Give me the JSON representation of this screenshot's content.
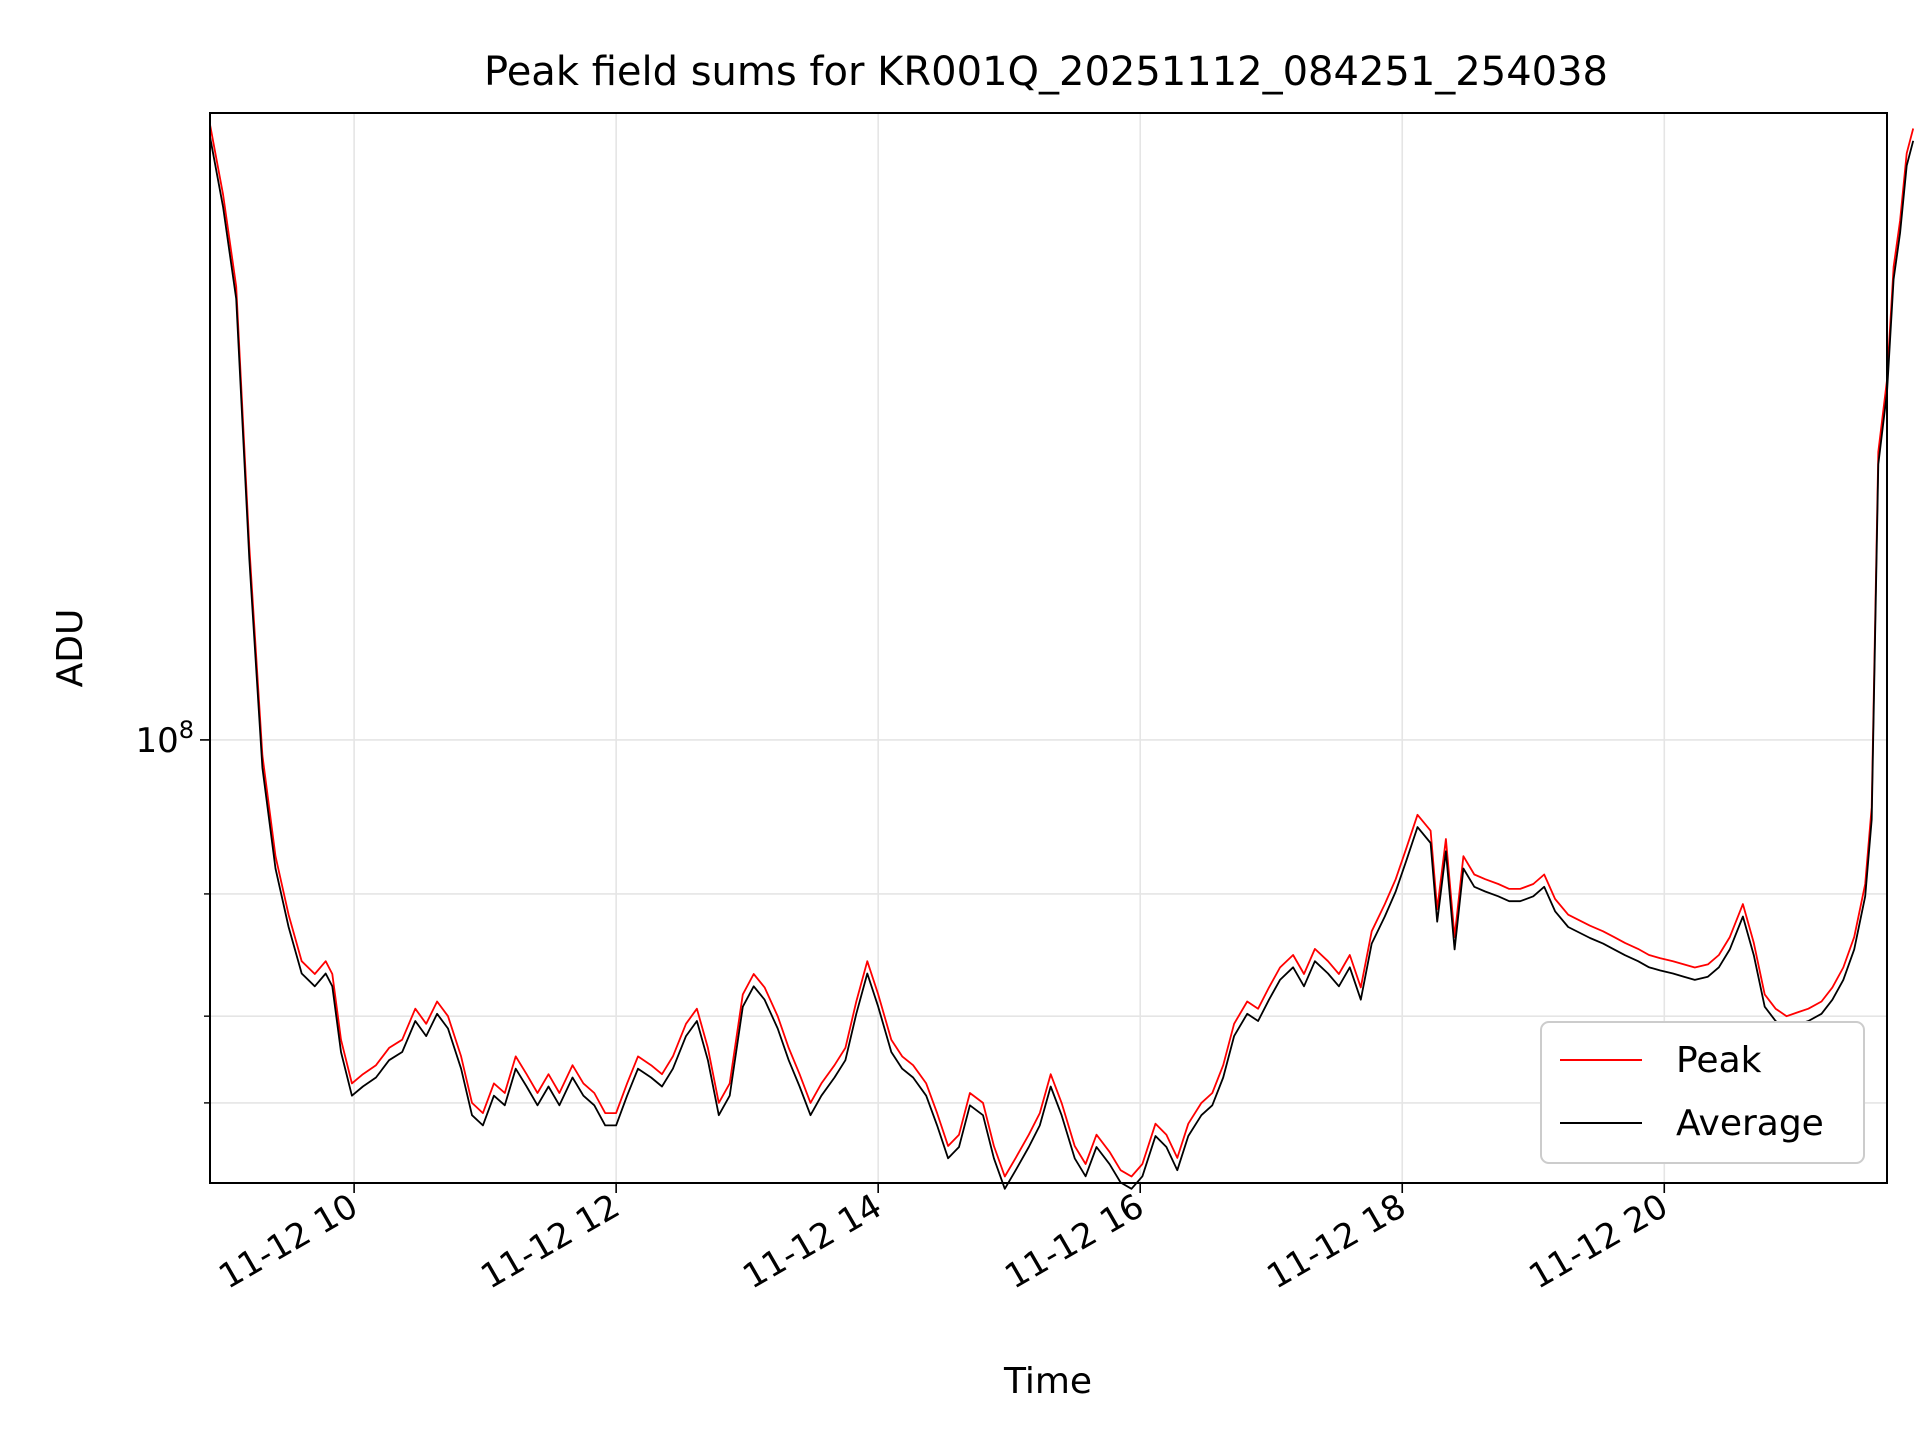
{
  "chart_data": {
    "type": "line",
    "title": "Peak field sums for KR001Q_20251112_084251_254038",
    "xlabel": "Time",
    "ylabel": "ADU",
    "x_ticks": [
      "11-12 10",
      "11-12 12",
      "11-12 14",
      "11-12 16",
      "11-12 18",
      "11-12 20"
    ],
    "y_ticks": [
      "10^8"
    ],
    "y_scale": "log",
    "grid": true,
    "legend_position": "lower right",
    "xlim": [
      "2025-11-12 08:54",
      "2025-11-12 21:42"
    ],
    "ylim": [
      23000000,
      800000000
    ],
    "series": [
      {
        "name": "Peak",
        "color": "#ff0000",
        "points": [
          [
            "08:54",
            770000000
          ],
          [
            "09:00",
            610000000
          ],
          [
            "09:06",
            450000000
          ],
          [
            "09:12",
            190000000
          ],
          [
            "09:18",
            95000000
          ],
          [
            "09:24",
            68000000
          ],
          [
            "09:30",
            56000000
          ],
          [
            "09:36",
            48000000
          ],
          [
            "09:42",
            46000000
          ],
          [
            "09:47",
            48000000
          ],
          [
            "09:50",
            46000000
          ],
          [
            "09:54",
            37000000
          ],
          [
            "09:59",
            32000000
          ],
          [
            "10:04",
            33000000
          ],
          [
            "10:10",
            34000000
          ],
          [
            "10:16",
            36000000
          ],
          [
            "10:22",
            37000000
          ],
          [
            "10:28",
            41000000
          ],
          [
            "10:33",
            39000000
          ],
          [
            "10:38",
            42000000
          ],
          [
            "10:43",
            40000000
          ],
          [
            "10:49",
            35000000
          ],
          [
            "10:54",
            30000000
          ],
          [
            "10:59",
            29000000
          ],
          [
            "11:04",
            32000000
          ],
          [
            "11:09",
            31000000
          ],
          [
            "11:14",
            35000000
          ],
          [
            "11:19",
            33000000
          ],
          [
            "11:24",
            31000000
          ],
          [
            "11:29",
            33000000
          ],
          [
            "11:34",
            31000000
          ],
          [
            "11:40",
            34000000
          ],
          [
            "11:45",
            32000000
          ],
          [
            "11:50",
            31000000
          ],
          [
            "11:55",
            29000000
          ],
          [
            "12:00",
            29000000
          ],
          [
            "12:05",
            32000000
          ],
          [
            "12:10",
            35000000
          ],
          [
            "12:16",
            34000000
          ],
          [
            "12:21",
            33000000
          ],
          [
            "12:26",
            35000000
          ],
          [
            "12:32",
            39000000
          ],
          [
            "12:37",
            41000000
          ],
          [
            "12:42",
            36000000
          ],
          [
            "12:47",
            30000000
          ],
          [
            "12:52",
            32000000
          ],
          [
            "12:58",
            43000000
          ],
          [
            "13:03",
            46000000
          ],
          [
            "13:08",
            44000000
          ],
          [
            "13:14",
            40000000
          ],
          [
            "13:19",
            36000000
          ],
          [
            "13:24",
            33000000
          ],
          [
            "13:29",
            30000000
          ],
          [
            "13:34",
            32000000
          ],
          [
            "13:40",
            34000000
          ],
          [
            "13:45",
            36000000
          ],
          [
            "13:50",
            42000000
          ],
          [
            "13:55",
            48000000
          ],
          [
            "14:00",
            43000000
          ],
          [
            "14:06",
            37000000
          ],
          [
            "14:11",
            35000000
          ],
          [
            "14:16",
            34000000
          ],
          [
            "14:22",
            32000000
          ],
          [
            "14:27",
            29000000
          ],
          [
            "14:32",
            26000000
          ],
          [
            "14:37",
            27000000
          ],
          [
            "14:42",
            31000000
          ],
          [
            "14:48",
            30000000
          ],
          [
            "14:53",
            26000000
          ],
          [
            "14:58",
            23500000
          ],
          [
            "15:03",
            25000000
          ],
          [
            "15:09",
            27000000
          ],
          [
            "15:14",
            29000000
          ],
          [
            "15:19",
            33000000
          ],
          [
            "15:24",
            30000000
          ],
          [
            "15:30",
            26000000
          ],
          [
            "15:35",
            24500000
          ],
          [
            "15:40",
            27000000
          ],
          [
            "15:46",
            25500000
          ],
          [
            "15:51",
            24000000
          ],
          [
            "15:56",
            23500000
          ],
          [
            "16:01",
            24500000
          ],
          [
            "16:07",
            28000000
          ],
          [
            "16:12",
            27000000
          ],
          [
            "16:17",
            25000000
          ],
          [
            "16:22",
            28000000
          ],
          [
            "16:28",
            30000000
          ],
          [
            "16:33",
            31000000
          ],
          [
            "16:38",
            34000000
          ],
          [
            "16:43",
            39000000
          ],
          [
            "16:49",
            42000000
          ],
          [
            "16:54",
            41000000
          ],
          [
            "16:59",
            44000000
          ],
          [
            "17:04",
            47000000
          ],
          [
            "17:10",
            49000000
          ],
          [
            "17:15",
            46000000
          ],
          [
            "17:20",
            50000000
          ],
          [
            "17:26",
            48000000
          ],
          [
            "17:31",
            46000000
          ],
          [
            "17:36",
            49000000
          ],
          [
            "17:41",
            44000000
          ],
          [
            "17:46",
            53000000
          ],
          [
            "17:52",
            58000000
          ],
          [
            "17:57",
            63000000
          ],
          [
            "18:02",
            70000000
          ],
          [
            "18:07",
            78000000
          ],
          [
            "18:13",
            74000000
          ],
          [
            "18:16",
            57000000
          ],
          [
            "18:20",
            72000000
          ],
          [
            "18:24",
            52000000
          ],
          [
            "18:28",
            68000000
          ],
          [
            "18:33",
            64000000
          ],
          [
            "18:38",
            63000000
          ],
          [
            "18:44",
            62000000
          ],
          [
            "18:49",
            61000000
          ],
          [
            "18:54",
            61000000
          ],
          [
            "19:00",
            62000000
          ],
          [
            "19:05",
            64000000
          ],
          [
            "19:10",
            59000000
          ],
          [
            "19:16",
            56000000
          ],
          [
            "19:21",
            55000000
          ],
          [
            "19:26",
            54000000
          ],
          [
            "19:32",
            53000000
          ],
          [
            "19:37",
            52000000
          ],
          [
            "19:42",
            51000000
          ],
          [
            "19:48",
            50000000
          ],
          [
            "19:53",
            49000000
          ],
          [
            "19:58",
            48500000
          ],
          [
            "20:04",
            48000000
          ],
          [
            "20:09",
            47500000
          ],
          [
            "20:14",
            47000000
          ],
          [
            "20:20",
            47500000
          ],
          [
            "20:25",
            49000000
          ],
          [
            "20:30",
            52000000
          ],
          [
            "20:36",
            58000000
          ],
          [
            "20:41",
            51000000
          ],
          [
            "20:46",
            43000000
          ],
          [
            "20:51",
            41000000
          ],
          [
            "20:56",
            40000000
          ],
          [
            "21:01",
            40500000
          ],
          [
            "21:06",
            41000000
          ],
          [
            "21:12",
            42000000
          ],
          [
            "21:17",
            44000000
          ],
          [
            "21:22",
            47000000
          ],
          [
            "21:27",
            52000000
          ],
          [
            "21:32",
            62000000
          ],
          [
            "21:35",
            80000000
          ],
          [
            "21:38",
            260000000
          ],
          [
            "21:42",
            330000000
          ],
          [
            "21:45",
            480000000
          ],
          [
            "21:48",
            560000000
          ],
          [
            "21:51",
            700000000
          ],
          [
            "21:54",
            760000000
          ]
        ]
      },
      {
        "name": "Average",
        "color": "#000000",
        "points": []
      }
    ]
  }
}
